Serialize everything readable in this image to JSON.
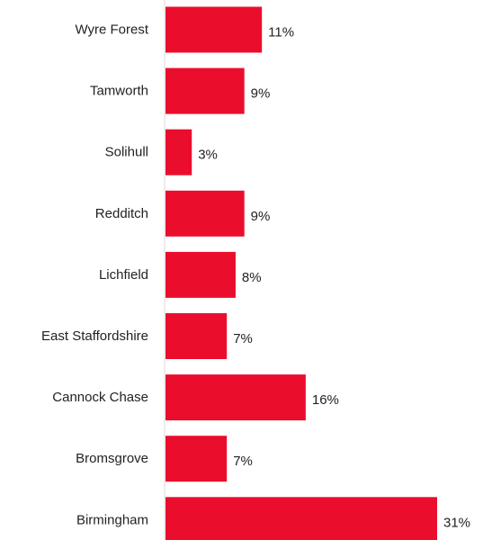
{
  "chart_data": {
    "type": "bar",
    "orientation": "horizontal",
    "categories": [
      "Wyre Forest",
      "Tamworth",
      "Solihull",
      "Redditch",
      "Lichfield",
      "East Staffordshire",
      "Cannock Chase",
      "Bromsgrove",
      "Birmingham"
    ],
    "values": [
      11,
      9,
      3,
      9,
      8,
      7,
      16,
      7,
      31
    ],
    "value_labels": [
      "11%",
      "9%",
      "3%",
      "9%",
      "8%",
      "7%",
      "16%",
      "7%",
      "31%"
    ],
    "unit": "%",
    "title": "",
    "xlabel": "",
    "ylabel": "",
    "xlim": [
      0,
      31
    ],
    "grid": false,
    "legend": "none",
    "bar_color": "#ea0e2c",
    "axis_line_color": "#d9d9d9"
  }
}
